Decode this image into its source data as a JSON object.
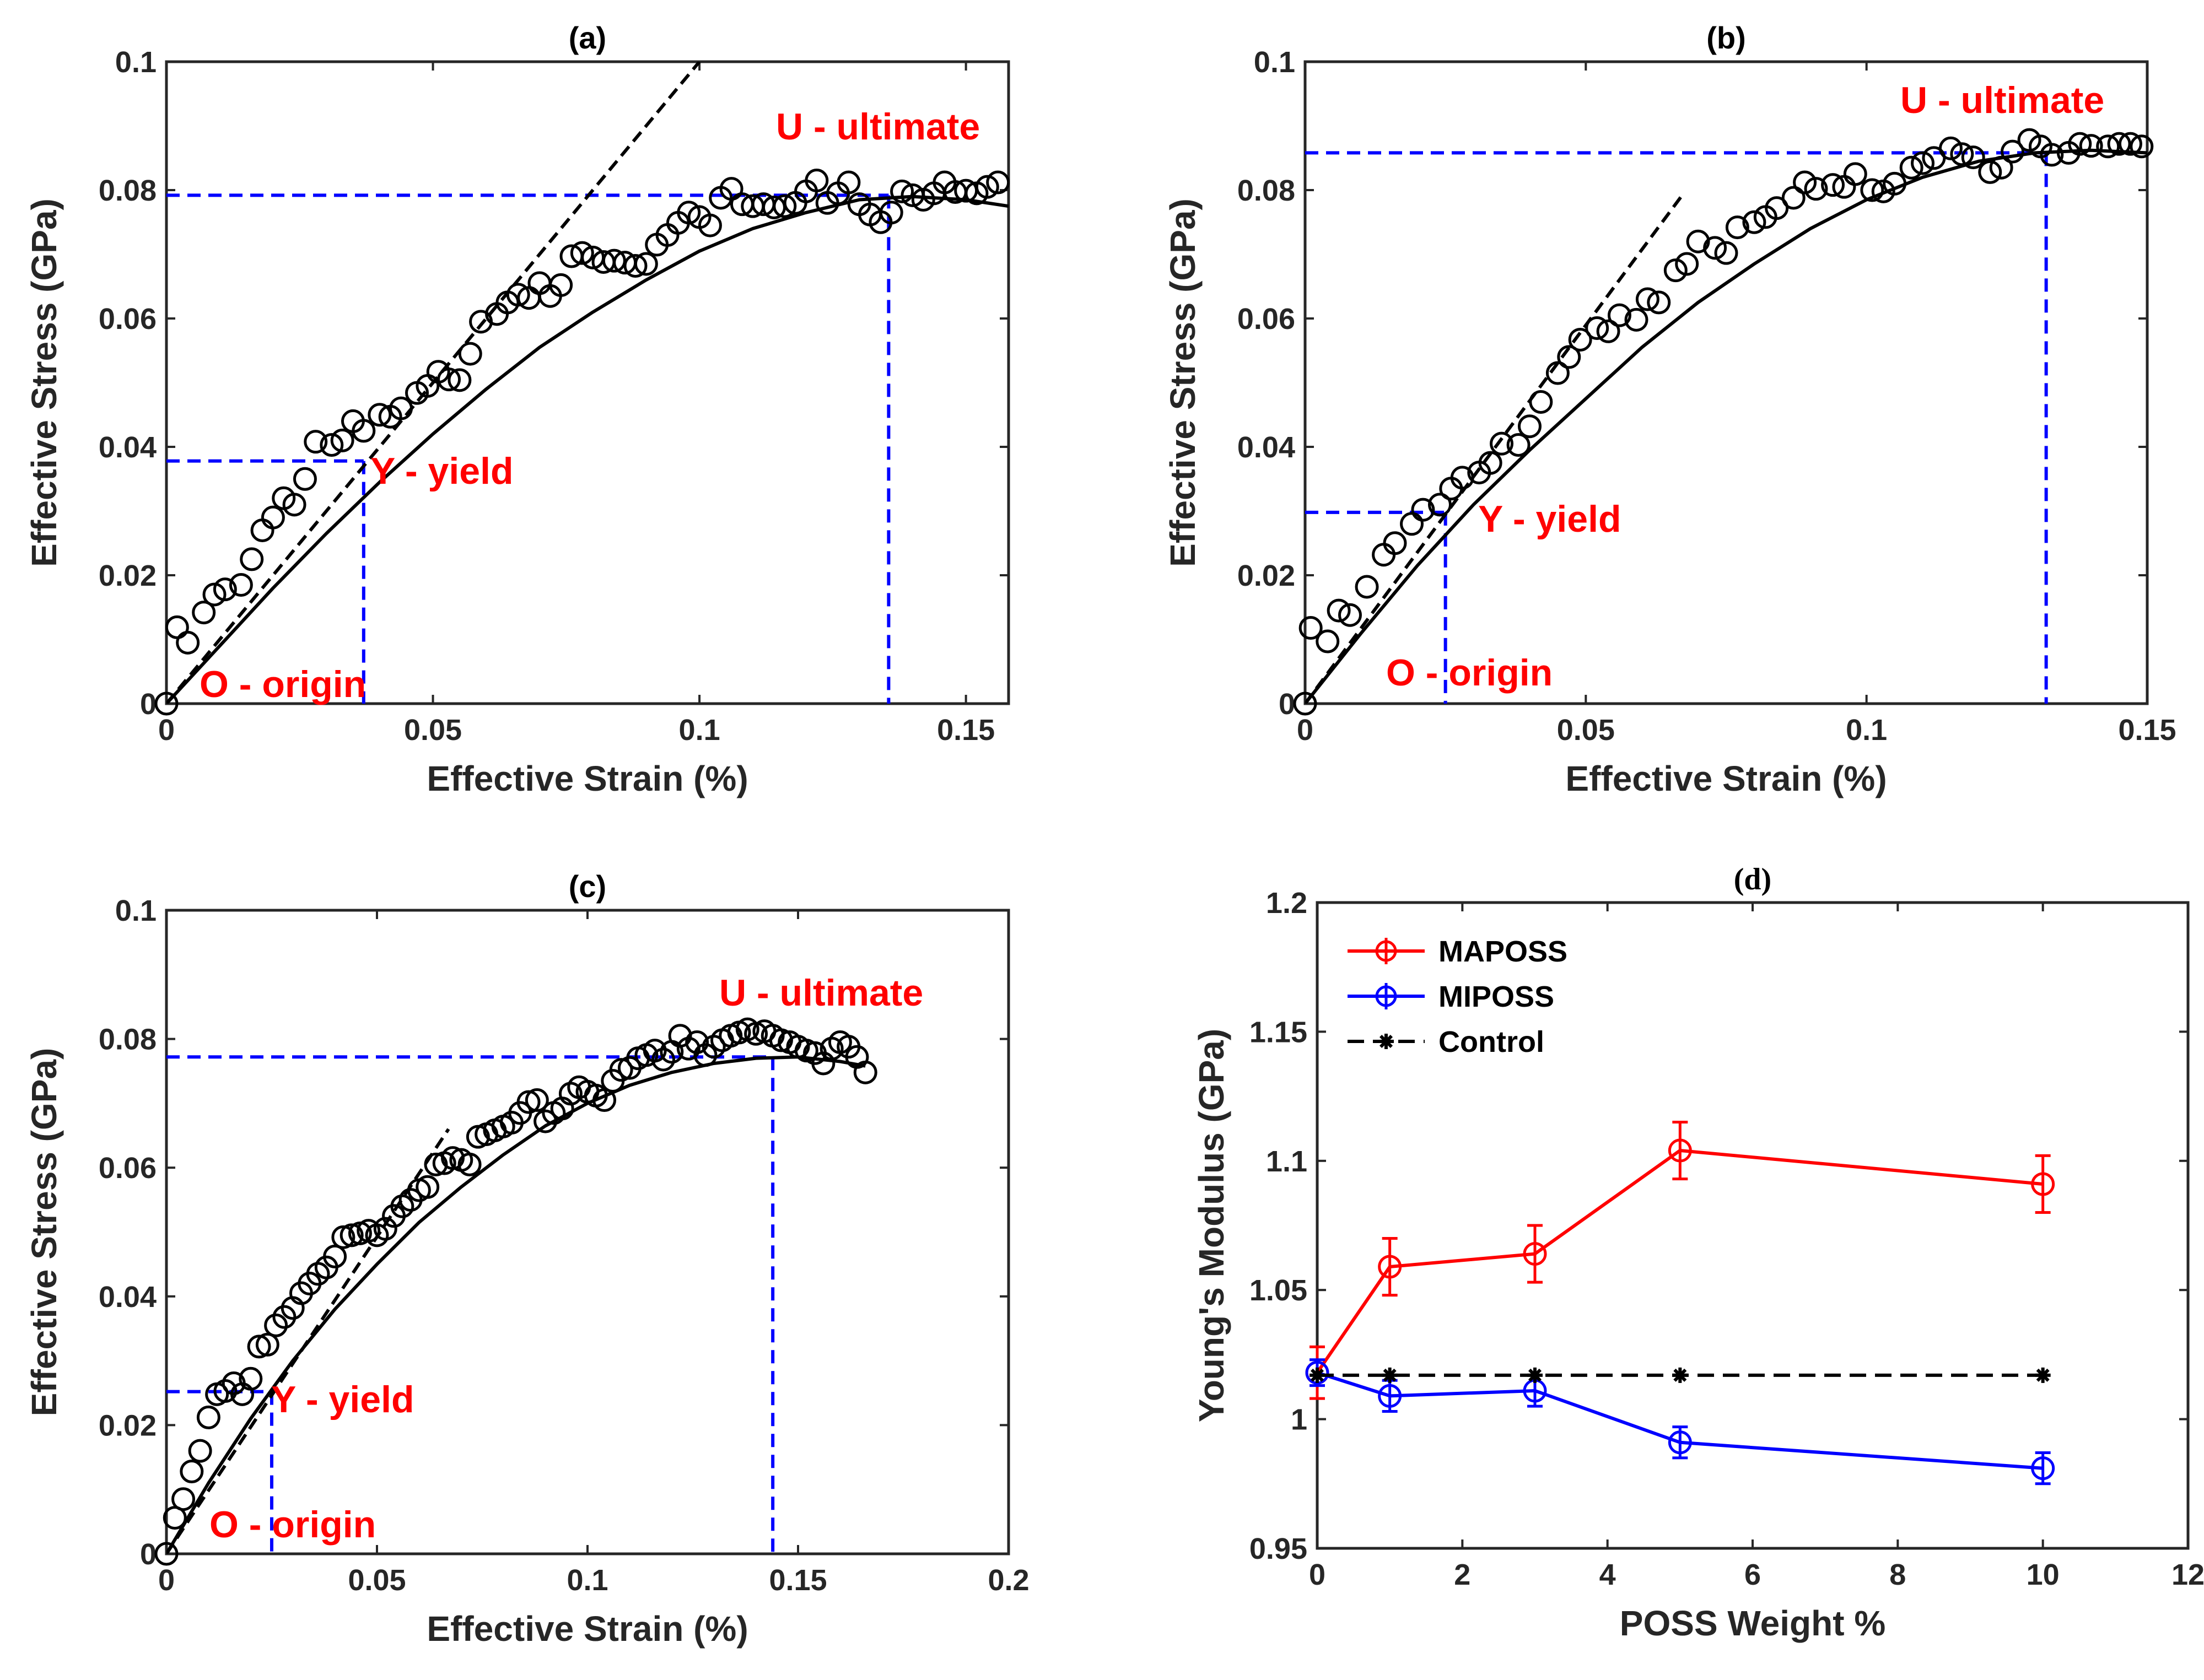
{
  "figure": {
    "colors": {
      "red": "#ff0000",
      "blue": "#0000ff",
      "black": "#000000",
      "axis": "#262626"
    }
  },
  "chart_data": [
    {
      "id": "a",
      "type": "scatter",
      "title": "(a)",
      "xlabel": "Effective Strain (%)",
      "ylabel": "Effective Stress (GPa)",
      "xlim": [
        0,
        0.158
      ],
      "ylim": [
        0,
        0.1
      ],
      "xticks": [
        0,
        0.05,
        0.1,
        0.15
      ],
      "xtick_labels": [
        "0",
        "0.05",
        "0.1",
        "0.15"
      ],
      "yticks": [
        0,
        0.02,
        0.04,
        0.06,
        0.08,
        0.1
      ],
      "ytick_labels": [
        "0",
        "0.02",
        "0.04",
        "0.06",
        "0.08",
        "0.1"
      ],
      "annotations": {
        "origin": "O - origin",
        "yield": "Y - yield",
        "ultimate": "U - ultimate"
      },
      "origin_point": [
        0,
        0
      ],
      "yield_point": [
        0.037,
        0.0378
      ],
      "ultimate_point": [
        0.1355,
        0.0792
      ],
      "elastic_line": {
        "x": [
          0,
          0.1
        ],
        "y": [
          0,
          0.1
        ]
      },
      "fit_curve": {
        "x": [
          0,
          0.01,
          0.02,
          0.03,
          0.04,
          0.05,
          0.06,
          0.07,
          0.08,
          0.09,
          0.1,
          0.11,
          0.12,
          0.13,
          0.14,
          0.15,
          0.158
        ],
        "y": [
          0,
          0.009,
          0.018,
          0.0265,
          0.0345,
          0.042,
          0.049,
          0.0555,
          0.061,
          0.066,
          0.0705,
          0.074,
          0.0765,
          0.0785,
          0.079,
          0.0785,
          0.0775
        ]
      },
      "points": {
        "x": [
          0,
          0.002,
          0.004,
          0.007,
          0.009,
          0.011,
          0.014,
          0.016,
          0.018,
          0.02,
          0.022,
          0.024,
          0.026,
          0.028,
          0.031,
          0.033,
          0.035,
          0.037,
          0.04,
          0.042,
          0.044,
          0.047,
          0.049,
          0.051,
          0.053,
          0.055,
          0.057,
          0.059,
          0.062,
          0.064,
          0.066,
          0.068,
          0.07,
          0.072,
          0.074,
          0.076,
          0.078,
          0.08,
          0.082,
          0.084,
          0.086,
          0.088,
          0.09,
          0.092,
          0.094,
          0.096,
          0.098,
          0.1,
          0.102,
          0.104,
          0.106,
          0.108,
          0.11,
          0.112,
          0.114,
          0.116,
          0.118,
          0.12,
          0.122,
          0.124,
          0.126,
          0.128,
          0.13,
          0.132,
          0.134,
          0.136,
          0.138,
          0.14,
          0.142,
          0.144,
          0.146,
          0.148,
          0.15,
          0.152,
          0.154,
          0.156
        ],
        "y": [
          0,
          0.0119,
          0.0095,
          0.0142,
          0.017,
          0.0178,
          0.0185,
          0.0225,
          0.027,
          0.029,
          0.032,
          0.031,
          0.035,
          0.0408,
          0.0403,
          0.041,
          0.044,
          0.0425,
          0.045,
          0.0447,
          0.046,
          0.0484,
          0.0495,
          0.0517,
          0.0505,
          0.0504,
          0.0545,
          0.0595,
          0.0607,
          0.0625,
          0.0637,
          0.0632,
          0.0655,
          0.0635,
          0.0652,
          0.0697,
          0.0702,
          0.0695,
          0.0688,
          0.069,
          0.0687,
          0.0682,
          0.0685,
          0.0715,
          0.073,
          0.0749,
          0.0765,
          0.0758,
          0.0745,
          0.0788,
          0.0802,
          0.0778,
          0.0775,
          0.0778,
          0.0773,
          0.0775,
          0.078,
          0.0798,
          0.0815,
          0.078,
          0.0795,
          0.0812,
          0.0778,
          0.0762,
          0.075,
          0.0765,
          0.0798,
          0.0792,
          0.0785,
          0.0795,
          0.0812,
          0.0797,
          0.0799,
          0.0795,
          0.0805,
          0.0812
        ]
      }
    },
    {
      "id": "b",
      "type": "scatter",
      "title": "(b)",
      "xlabel": "Effective Strain (%)",
      "ylabel": "Effective Stress (GPa)",
      "xlim": [
        0,
        0.15
      ],
      "ylim": [
        0,
        0.1
      ],
      "xticks": [
        0,
        0.05,
        0.1,
        0.15
      ],
      "xtick_labels": [
        "0",
        "0.05",
        "0.1",
        "0.15"
      ],
      "yticks": [
        0,
        0.02,
        0.04,
        0.06,
        0.08,
        0.1
      ],
      "ytick_labels": [
        "0",
        "0.02",
        "0.04",
        "0.06",
        "0.08",
        "0.1"
      ],
      "annotations": {
        "origin": "O - origin",
        "yield": "Y - yield",
        "ultimate": "U - ultimate"
      },
      "origin_point": [
        0,
        0
      ],
      "yield_point": [
        0.025,
        0.0298
      ],
      "ultimate_point": [
        0.132,
        0.0858
      ],
      "elastic_line": {
        "x": [
          0,
          0.067
        ],
        "y": [
          0,
          0.079
        ]
      },
      "fit_curve": {
        "x": [
          0,
          0.01,
          0.02,
          0.03,
          0.04,
          0.05,
          0.06,
          0.07,
          0.08,
          0.09,
          0.1,
          0.11,
          0.12,
          0.13,
          0.14,
          0.15
        ],
        "y": [
          0,
          0.011,
          0.0215,
          0.031,
          0.0395,
          0.0475,
          0.0555,
          0.0625,
          0.0685,
          0.074,
          0.0785,
          0.082,
          0.0845,
          0.0858,
          0.0862,
          0.0858
        ]
      },
      "points": {
        "x": [
          0,
          0.001,
          0.004,
          0.006,
          0.008,
          0.011,
          0.014,
          0.016,
          0.019,
          0.021,
          0.024,
          0.026,
          0.028,
          0.031,
          0.033,
          0.035,
          0.038,
          0.04,
          0.042,
          0.045,
          0.047,
          0.049,
          0.052,
          0.054,
          0.056,
          0.059,
          0.061,
          0.063,
          0.066,
          0.068,
          0.07,
          0.073,
          0.075,
          0.077,
          0.08,
          0.082,
          0.084,
          0.087,
          0.089,
          0.091,
          0.094,
          0.096,
          0.098,
          0.101,
          0.103,
          0.105,
          0.108,
          0.11,
          0.112,
          0.115,
          0.117,
          0.119,
          0.122,
          0.124,
          0.126,
          0.129,
          0.131,
          0.133,
          0.136,
          0.138,
          0.14,
          0.143,
          0.145,
          0.147,
          0.149
        ],
        "y": [
          0,
          0.0118,
          0.0097,
          0.0145,
          0.0138,
          0.0182,
          0.0232,
          0.025,
          0.028,
          0.0302,
          0.031,
          0.0335,
          0.0352,
          0.036,
          0.0375,
          0.0405,
          0.0403,
          0.0432,
          0.047,
          0.0515,
          0.054,
          0.0567,
          0.0585,
          0.058,
          0.0605,
          0.0598,
          0.063,
          0.0625,
          0.0675,
          0.0685,
          0.072,
          0.071,
          0.0702,
          0.0742,
          0.075,
          0.0758,
          0.0772,
          0.0788,
          0.0812,
          0.0802,
          0.0808,
          0.0805,
          0.0825,
          0.08,
          0.0798,
          0.081,
          0.0835,
          0.0842,
          0.085,
          0.0865,
          0.0856,
          0.0851,
          0.0828,
          0.0835,
          0.086,
          0.0878,
          0.0868,
          0.0855,
          0.0858,
          0.0872,
          0.0869,
          0.0868,
          0.0872,
          0.0872,
          0.0868
        ]
      }
    },
    {
      "id": "c",
      "type": "scatter",
      "title": "(c)",
      "xlabel": "Effective Strain (%)",
      "ylabel": "Effective Stress (GPa)",
      "xlim": [
        0,
        0.2
      ],
      "ylim": [
        0,
        0.1
      ],
      "xticks": [
        0,
        0.05,
        0.1,
        0.15,
        0.2
      ],
      "xtick_labels": [
        "0",
        "0.05",
        "0.1",
        "0.15",
        "0.2"
      ],
      "yticks": [
        0,
        0.02,
        0.04,
        0.06,
        0.08,
        0.1
      ],
      "ytick_labels": [
        "0",
        "0.02",
        "0.04",
        "0.06",
        "0.08",
        "0.1"
      ],
      "annotations": {
        "origin": "O - origin",
        "yield": "Y - yield",
        "ultimate": "U - ultimate"
      },
      "origin_point": [
        0,
        0
      ],
      "yield_point": [
        0.025,
        0.0252
      ],
      "ultimate_point": [
        0.144,
        0.0772
      ],
      "elastic_line": {
        "x": [
          0,
          0.067
        ],
        "y": [
          0,
          0.066
        ]
      },
      "fit_curve": {
        "x": [
          0,
          0.01,
          0.02,
          0.03,
          0.04,
          0.05,
          0.06,
          0.07,
          0.08,
          0.09,
          0.1,
          0.11,
          0.12,
          0.13,
          0.14,
          0.15,
          0.16,
          0.166
        ],
        "y": [
          0,
          0.011,
          0.021,
          0.03,
          0.038,
          0.045,
          0.0515,
          0.057,
          0.062,
          0.0665,
          0.07,
          0.0728,
          0.0748,
          0.0762,
          0.077,
          0.0772,
          0.0765,
          0.0758
        ]
      },
      "points": {
        "x": [
          0,
          0.002,
          0.004,
          0.006,
          0.008,
          0.01,
          0.012,
          0.014,
          0.016,
          0.018,
          0.02,
          0.022,
          0.024,
          0.026,
          0.028,
          0.03,
          0.032,
          0.034,
          0.036,
          0.038,
          0.04,
          0.042,
          0.044,
          0.046,
          0.048,
          0.05,
          0.052,
          0.054,
          0.056,
          0.058,
          0.06,
          0.062,
          0.064,
          0.066,
          0.068,
          0.07,
          0.072,
          0.074,
          0.076,
          0.078,
          0.08,
          0.082,
          0.084,
          0.086,
          0.088,
          0.09,
          0.092,
          0.094,
          0.096,
          0.098,
          0.1,
          0.102,
          0.104,
          0.106,
          0.108,
          0.11,
          0.112,
          0.114,
          0.116,
          0.118,
          0.12,
          0.122,
          0.124,
          0.126,
          0.128,
          0.13,
          0.132,
          0.134,
          0.136,
          0.138,
          0.14,
          0.142,
          0.144,
          0.146,
          0.148,
          0.15,
          0.152,
          0.154,
          0.156,
          0.158,
          0.16,
          0.162,
          0.164,
          0.166
        ],
        "y": [
          0,
          0.0056,
          0.0085,
          0.0128,
          0.016,
          0.0212,
          0.0248,
          0.0253,
          0.0265,
          0.0248,
          0.0272,
          0.0322,
          0.0325,
          0.0355,
          0.0368,
          0.0382,
          0.0405,
          0.042,
          0.0435,
          0.0445,
          0.0462,
          0.0492,
          0.0495,
          0.0498,
          0.0502,
          0.0495,
          0.0505,
          0.0525,
          0.054,
          0.055,
          0.0565,
          0.057,
          0.0605,
          0.0607,
          0.0615,
          0.0612,
          0.0605,
          0.0648,
          0.0652,
          0.0658,
          0.0664,
          0.067,
          0.0685,
          0.0702,
          0.0705,
          0.0672,
          0.0685,
          0.0692,
          0.0715,
          0.0725,
          0.0718,
          0.0712,
          0.0705,
          0.0735,
          0.0752,
          0.0755,
          0.077,
          0.0775,
          0.0782,
          0.0768,
          0.078,
          0.0805,
          0.0785,
          0.0795,
          0.0775,
          0.0788,
          0.0798,
          0.0805,
          0.081,
          0.0815,
          0.0808,
          0.0812,
          0.0805,
          0.0798,
          0.0795,
          0.0788,
          0.0782,
          0.0778,
          0.0762,
          0.0785,
          0.0795,
          0.0788,
          0.0772,
          0.0748
        ],
        "xnote": "scatter points in data units"
      }
    },
    {
      "id": "d",
      "type": "line",
      "title": "(d)",
      "xlabel": "POSS Weight %",
      "ylabel": "Young's Modulus (GPa)",
      "xlim": [
        0,
        12
      ],
      "ylim": [
        0.95,
        1.2
      ],
      "xticks": [
        0,
        2,
        4,
        6,
        8,
        10,
        12
      ],
      "xtick_labels": [
        "0",
        "2",
        "4",
        "6",
        "8",
        "10",
        "12"
      ],
      "yticks": [
        0.95,
        1,
        1.05,
        1.1,
        1.15,
        1.2
      ],
      "ytick_labels": [
        "0.95",
        "1",
        "1.05",
        "1.1",
        "1.15",
        "1.2"
      ],
      "legend_position": "top-left",
      "series": [
        {
          "name": "MAPOSS",
          "color": "#ff0000",
          "marker": "circle",
          "x": [
            0,
            1,
            3,
            5,
            10
          ],
          "y": [
            1.018,
            1.059,
            1.064,
            1.104,
            1.091
          ],
          "err": [
            0.01,
            0.011,
            0.011,
            0.011,
            0.011
          ]
        },
        {
          "name": "MIPOSS",
          "color": "#0000ff",
          "marker": "circle",
          "x": [
            0,
            1,
            3,
            5,
            10
          ],
          "y": [
            1.018,
            1.009,
            1.011,
            0.991,
            0.981
          ],
          "err": [
            0.005,
            0.006,
            0.006,
            0.006,
            0.006
          ]
        },
        {
          "name": "Control",
          "color": "#000000",
          "marker": "asterisk",
          "dashed": true,
          "x": [
            0,
            1,
            3,
            5,
            10
          ],
          "y": [
            1.017,
            1.017,
            1.017,
            1.017,
            1.017
          ],
          "err": []
        }
      ]
    }
  ]
}
